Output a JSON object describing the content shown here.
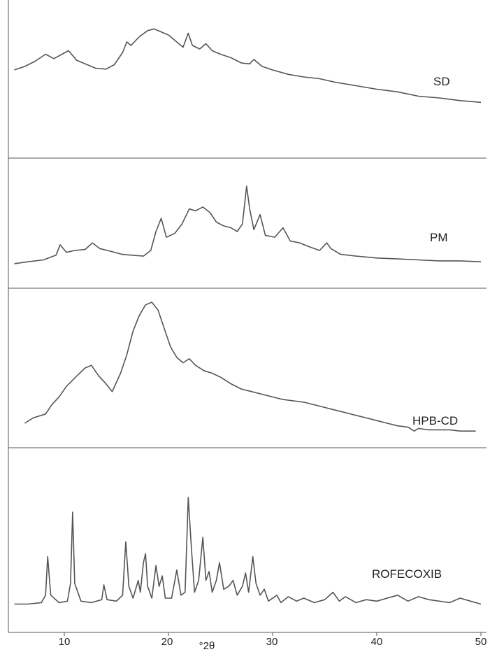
{
  "chart_data": {
    "type": "line",
    "xlabel": "°2θ",
    "ylabel": "",
    "xlim": [
      5,
      50
    ],
    "x_ticks": [
      "10",
      "20",
      "30",
      "40",
      "50"
    ],
    "grid": false,
    "legend": "none",
    "line_color": "#555555",
    "panels": [
      {
        "label": "SD",
        "points": [
          [
            5.2,
            0.52
          ],
          [
            6.2,
            0.56
          ],
          [
            7.2,
            0.62
          ],
          [
            8.2,
            0.7
          ],
          [
            9.0,
            0.65
          ],
          [
            10.4,
            0.74
          ],
          [
            11.2,
            0.63
          ],
          [
            12.2,
            0.58
          ],
          [
            13.0,
            0.54
          ],
          [
            14.0,
            0.53
          ],
          [
            14.8,
            0.58
          ],
          [
            15.6,
            0.72
          ],
          [
            16.0,
            0.84
          ],
          [
            16.4,
            0.8
          ],
          [
            17.2,
            0.9
          ],
          [
            18.0,
            0.97
          ],
          [
            18.6,
            0.99
          ],
          [
            19.2,
            0.96
          ],
          [
            20.0,
            0.92
          ],
          [
            20.8,
            0.84
          ],
          [
            21.4,
            0.78
          ],
          [
            21.9,
            0.94
          ],
          [
            22.3,
            0.8
          ],
          [
            23.0,
            0.76
          ],
          [
            23.6,
            0.82
          ],
          [
            24.2,
            0.74
          ],
          [
            25.0,
            0.7
          ],
          [
            26.0,
            0.66
          ],
          [
            27.0,
            0.6
          ],
          [
            27.8,
            0.59
          ],
          [
            28.2,
            0.64
          ],
          [
            29.0,
            0.56
          ],
          [
            30.0,
            0.52
          ],
          [
            31.5,
            0.47
          ],
          [
            33.0,
            0.44
          ],
          [
            34.5,
            0.42
          ],
          [
            36.0,
            0.38
          ],
          [
            38.0,
            0.34
          ],
          [
            40.0,
            0.3
          ],
          [
            42.0,
            0.27
          ],
          [
            44.0,
            0.22
          ],
          [
            46.0,
            0.2
          ],
          [
            48.0,
            0.17
          ],
          [
            50.0,
            0.15
          ]
        ]
      },
      {
        "label": "PM",
        "points": [
          [
            5.2,
            0.06
          ],
          [
            6.5,
            0.08
          ],
          [
            8.0,
            0.1
          ],
          [
            9.2,
            0.15
          ],
          [
            9.6,
            0.26
          ],
          [
            10.2,
            0.18
          ],
          [
            11.0,
            0.2
          ],
          [
            12.0,
            0.21
          ],
          [
            12.7,
            0.28
          ],
          [
            13.4,
            0.22
          ],
          [
            14.5,
            0.19
          ],
          [
            15.5,
            0.16
          ],
          [
            16.5,
            0.15
          ],
          [
            17.6,
            0.14
          ],
          [
            18.3,
            0.2
          ],
          [
            18.8,
            0.4
          ],
          [
            19.3,
            0.54
          ],
          [
            19.8,
            0.34
          ],
          [
            20.6,
            0.38
          ],
          [
            21.3,
            0.48
          ],
          [
            22.0,
            0.64
          ],
          [
            22.6,
            0.62
          ],
          [
            23.3,
            0.66
          ],
          [
            24.0,
            0.6
          ],
          [
            24.6,
            0.5
          ],
          [
            25.3,
            0.46
          ],
          [
            26.0,
            0.44
          ],
          [
            26.6,
            0.4
          ],
          [
            27.1,
            0.48
          ],
          [
            27.5,
            0.88
          ],
          [
            27.8,
            0.64
          ],
          [
            28.2,
            0.42
          ],
          [
            28.8,
            0.58
          ],
          [
            29.3,
            0.36
          ],
          [
            30.2,
            0.34
          ],
          [
            31.0,
            0.44
          ],
          [
            31.7,
            0.3
          ],
          [
            32.6,
            0.28
          ],
          [
            33.5,
            0.24
          ],
          [
            34.5,
            0.2
          ],
          [
            35.2,
            0.28
          ],
          [
            35.6,
            0.22
          ],
          [
            36.5,
            0.16
          ],
          [
            38.0,
            0.14
          ],
          [
            40.0,
            0.12
          ],
          [
            42.0,
            0.11
          ],
          [
            44.0,
            0.1
          ],
          [
            46.0,
            0.09
          ],
          [
            48.0,
            0.09
          ],
          [
            50.0,
            0.08
          ]
        ]
      },
      {
        "label": "HPB-CD",
        "points": [
          [
            6.2,
            0.08
          ],
          [
            7.0,
            0.12
          ],
          [
            8.2,
            0.15
          ],
          [
            8.8,
            0.22
          ],
          [
            9.5,
            0.28
          ],
          [
            10.2,
            0.36
          ],
          [
            11.2,
            0.44
          ],
          [
            12.0,
            0.5
          ],
          [
            12.6,
            0.52
          ],
          [
            13.3,
            0.44
          ],
          [
            14.0,
            0.38
          ],
          [
            14.6,
            0.32
          ],
          [
            15.4,
            0.46
          ],
          [
            16.0,
            0.6
          ],
          [
            16.6,
            0.78
          ],
          [
            17.2,
            0.9
          ],
          [
            17.8,
            0.98
          ],
          [
            18.4,
            1.0
          ],
          [
            19.0,
            0.94
          ],
          [
            19.6,
            0.8
          ],
          [
            20.2,
            0.66
          ],
          [
            20.8,
            0.58
          ],
          [
            21.4,
            0.54
          ],
          [
            22.0,
            0.57
          ],
          [
            22.6,
            0.52
          ],
          [
            23.4,
            0.48
          ],
          [
            24.2,
            0.46
          ],
          [
            25.0,
            0.43
          ],
          [
            26.0,
            0.38
          ],
          [
            27.0,
            0.34
          ],
          [
            28.0,
            0.32
          ],
          [
            29.0,
            0.3
          ],
          [
            30.0,
            0.28
          ],
          [
            31.0,
            0.26
          ],
          [
            32.0,
            0.25
          ],
          [
            33.0,
            0.24
          ],
          [
            34.0,
            0.22
          ],
          [
            35.0,
            0.2
          ],
          [
            36.0,
            0.18
          ],
          [
            37.0,
            0.16
          ],
          [
            38.0,
            0.14
          ],
          [
            39.0,
            0.12
          ],
          [
            40.0,
            0.1
          ],
          [
            41.0,
            0.08
          ],
          [
            42.0,
            0.06
          ],
          [
            43.0,
            0.05
          ],
          [
            43.6,
            0.02
          ],
          [
            44.0,
            0.04
          ],
          [
            45.0,
            0.03
          ],
          [
            46.0,
            0.03
          ],
          [
            47.0,
            0.03
          ],
          [
            48.0,
            0.02
          ],
          [
            49.5,
            0.02
          ]
        ]
      },
      {
        "label": "ROFECOXIB",
        "points": [
          [
            5.2,
            0.04
          ],
          [
            6.5,
            0.04
          ],
          [
            7.8,
            0.05
          ],
          [
            8.2,
            0.1
          ],
          [
            8.4,
            0.36
          ],
          [
            8.7,
            0.1
          ],
          [
            9.5,
            0.05
          ],
          [
            10.3,
            0.06
          ],
          [
            10.6,
            0.18
          ],
          [
            10.8,
            0.66
          ],
          [
            11.0,
            0.18
          ],
          [
            11.6,
            0.06
          ],
          [
            12.6,
            0.05
          ],
          [
            13.6,
            0.07
          ],
          [
            13.8,
            0.17
          ],
          [
            14.1,
            0.07
          ],
          [
            15.0,
            0.06
          ],
          [
            15.6,
            0.1
          ],
          [
            15.9,
            0.46
          ],
          [
            16.2,
            0.16
          ],
          [
            16.6,
            0.08
          ],
          [
            17.1,
            0.2
          ],
          [
            17.3,
            0.12
          ],
          [
            17.6,
            0.32
          ],
          [
            17.8,
            0.38
          ],
          [
            18.0,
            0.16
          ],
          [
            18.4,
            0.08
          ],
          [
            18.8,
            0.3
          ],
          [
            19.1,
            0.16
          ],
          [
            19.4,
            0.23
          ],
          [
            19.7,
            0.08
          ],
          [
            20.3,
            0.08
          ],
          [
            20.8,
            0.27
          ],
          [
            21.2,
            0.1
          ],
          [
            21.6,
            0.12
          ],
          [
            21.9,
            0.76
          ],
          [
            22.2,
            0.42
          ],
          [
            22.5,
            0.12
          ],
          [
            22.9,
            0.2
          ],
          [
            23.3,
            0.49
          ],
          [
            23.6,
            0.2
          ],
          [
            23.9,
            0.26
          ],
          [
            24.2,
            0.12
          ],
          [
            24.6,
            0.2
          ],
          [
            24.9,
            0.32
          ],
          [
            25.3,
            0.14
          ],
          [
            25.8,
            0.16
          ],
          [
            26.2,
            0.2
          ],
          [
            26.6,
            0.1
          ],
          [
            27.1,
            0.16
          ],
          [
            27.4,
            0.25
          ],
          [
            27.7,
            0.12
          ],
          [
            28.1,
            0.36
          ],
          [
            28.4,
            0.18
          ],
          [
            28.8,
            0.1
          ],
          [
            29.2,
            0.14
          ],
          [
            29.6,
            0.06
          ],
          [
            30.4,
            0.1
          ],
          [
            30.8,
            0.05
          ],
          [
            31.5,
            0.09
          ],
          [
            32.3,
            0.06
          ],
          [
            33.0,
            0.08
          ],
          [
            34.0,
            0.05
          ],
          [
            35.0,
            0.07
          ],
          [
            35.8,
            0.12
          ],
          [
            36.4,
            0.06
          ],
          [
            37.0,
            0.09
          ],
          [
            38.0,
            0.05
          ],
          [
            39.0,
            0.07
          ],
          [
            40.0,
            0.06
          ],
          [
            41.0,
            0.08
          ],
          [
            42.0,
            0.1
          ],
          [
            43.0,
            0.06
          ],
          [
            44.0,
            0.09
          ],
          [
            45.0,
            0.07
          ],
          [
            46.0,
            0.06
          ],
          [
            47.0,
            0.05
          ],
          [
            48.0,
            0.08
          ],
          [
            49.0,
            0.06
          ],
          [
            50.0,
            0.04
          ]
        ]
      }
    ]
  }
}
